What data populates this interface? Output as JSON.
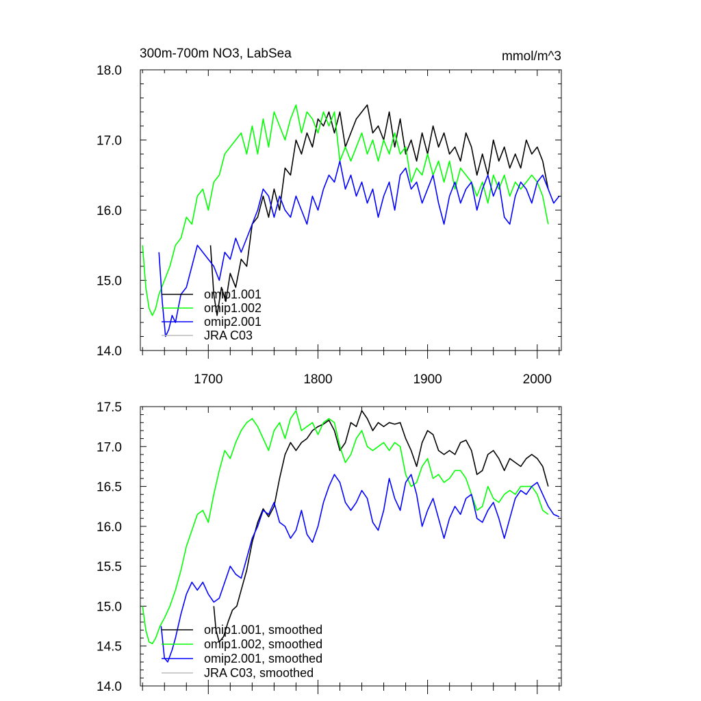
{
  "chart_data": [
    {
      "type": "line",
      "title": "300m-700m NO3, LabSea",
      "units": "mmol/m^3",
      "xlim": [
        1638,
        2022
      ],
      "ylim": [
        14.0,
        18.0
      ],
      "x_ticks": [
        1700,
        1800,
        1900,
        2000
      ],
      "x_tick_labels": [
        "1700",
        "1800",
        "1900",
        "2000"
      ],
      "y_ticks": [
        14.0,
        15.0,
        16.0,
        17.0,
        18.0
      ],
      "y_tick_labels": [
        "14.0",
        "15.0",
        "16.0",
        "17.0",
        "18.0"
      ],
      "legend_position": "bottom-left",
      "grid": false,
      "series": [
        {
          "name": "omip1.001",
          "color": "#000000",
          "x": [
            1702,
            1705,
            1708,
            1712,
            1716,
            1720,
            1725,
            1730,
            1735,
            1740,
            1745,
            1750,
            1755,
            1760,
            1765,
            1770,
            1775,
            1780,
            1785,
            1790,
            1795,
            1800,
            1805,
            1810,
            1815,
            1820,
            1825,
            1830,
            1835,
            1840,
            1845,
            1850,
            1855,
            1860,
            1865,
            1870,
            1875,
            1880,
            1885,
            1890,
            1895,
            1900,
            1905,
            1910,
            1915,
            1920,
            1925,
            1930,
            1935,
            1940,
            1945,
            1950,
            1955,
            1960,
            1965,
            1970,
            1975,
            1980,
            1985,
            1990,
            1995,
            2000,
            2005,
            2010
          ],
          "y": [
            15.5,
            14.8,
            14.5,
            14.9,
            14.7,
            15.1,
            14.9,
            15.3,
            15.2,
            15.8,
            15.9,
            16.2,
            15.9,
            16.3,
            16.0,
            16.6,
            16.5,
            17.0,
            16.8,
            17.1,
            16.9,
            17.3,
            17.2,
            17.4,
            17.1,
            17.4,
            16.9,
            17.1,
            17.3,
            17.4,
            17.5,
            17.1,
            17.2,
            17.0,
            17.4,
            16.9,
            17.3,
            16.8,
            17.0,
            16.7,
            17.1,
            16.8,
            17.2,
            16.9,
            17.1,
            16.8,
            16.9,
            16.7,
            17.1,
            16.9,
            16.5,
            16.8,
            16.5,
            17.0,
            16.7,
            16.9,
            16.6,
            16.8,
            16.6,
            17.0,
            16.8,
            16.9,
            16.7,
            16.3
          ]
        },
        {
          "name": "omip1.002",
          "color": "#00ff00",
          "x": [
            1640,
            1643,
            1646,
            1649,
            1652,
            1655,
            1660,
            1665,
            1670,
            1675,
            1680,
            1685,
            1690,
            1695,
            1700,
            1705,
            1710,
            1715,
            1720,
            1725,
            1730,
            1735,
            1740,
            1745,
            1750,
            1755,
            1760,
            1765,
            1770,
            1775,
            1780,
            1785,
            1790,
            1795,
            1800,
            1805,
            1810,
            1815,
            1820,
            1825,
            1830,
            1835,
            1840,
            1845,
            1850,
            1855,
            1860,
            1865,
            1870,
            1875,
            1880,
            1885,
            1890,
            1895,
            1900,
            1905,
            1910,
            1915,
            1920,
            1925,
            1930,
            1935,
            1940,
            1945,
            1950,
            1955,
            1960,
            1965,
            1970,
            1975,
            1980,
            1985,
            1990,
            1995,
            2000,
            2005,
            2010
          ],
          "y": [
            15.5,
            14.9,
            14.6,
            14.5,
            14.6,
            14.8,
            15.0,
            15.2,
            15.5,
            15.6,
            15.9,
            15.8,
            16.2,
            16.3,
            16.0,
            16.4,
            16.5,
            16.8,
            16.9,
            17.0,
            17.1,
            16.8,
            17.2,
            16.8,
            17.3,
            16.9,
            17.4,
            17.2,
            17.0,
            17.3,
            17.5,
            17.1,
            17.4,
            17.3,
            17.1,
            17.4,
            17.2,
            17.4,
            16.7,
            16.9,
            16.7,
            16.9,
            17.1,
            16.8,
            17.0,
            16.7,
            17.0,
            16.8,
            17.1,
            16.8,
            16.9,
            16.4,
            16.6,
            16.5,
            16.8,
            16.5,
            16.7,
            16.4,
            16.7,
            16.3,
            16.6,
            16.5,
            16.4,
            16.2,
            16.4,
            16.1,
            16.5,
            16.3,
            16.5,
            16.2,
            16.4,
            16.3,
            16.4,
            16.5,
            16.4,
            16.2,
            15.8
          ]
        },
        {
          "name": "omip2.001",
          "color": "#0000ff",
          "x": [
            1655,
            1658,
            1661,
            1664,
            1667,
            1670,
            1675,
            1680,
            1685,
            1690,
            1695,
            1700,
            1705,
            1710,
            1715,
            1720,
            1725,
            1730,
            1735,
            1740,
            1745,
            1750,
            1755,
            1760,
            1765,
            1770,
            1775,
            1780,
            1785,
            1790,
            1795,
            1800,
            1805,
            1810,
            1815,
            1820,
            1825,
            1830,
            1835,
            1840,
            1845,
            1850,
            1855,
            1860,
            1865,
            1870,
            1875,
            1880,
            1885,
            1890,
            1895,
            1900,
            1905,
            1910,
            1915,
            1920,
            1925,
            1930,
            1935,
            1940,
            1945,
            1950,
            1955,
            1960,
            1965,
            1970,
            1975,
            1980,
            1985,
            1990,
            1995,
            2000,
            2005,
            2010,
            2015,
            2020
          ],
          "y": [
            15.4,
            14.7,
            14.2,
            14.3,
            14.5,
            14.4,
            14.8,
            14.9,
            15.2,
            15.5,
            15.4,
            15.3,
            15.2,
            15.0,
            15.4,
            15.3,
            15.6,
            15.4,
            15.6,
            15.8,
            16.0,
            16.3,
            16.2,
            15.9,
            16.2,
            16.0,
            15.9,
            16.2,
            16.0,
            15.8,
            16.2,
            16.0,
            16.3,
            16.5,
            16.4,
            16.7,
            16.3,
            16.5,
            16.2,
            16.4,
            16.1,
            16.3,
            15.9,
            16.2,
            16.4,
            16.0,
            16.5,
            16.6,
            16.3,
            16.4,
            16.1,
            16.3,
            16.5,
            16.1,
            15.8,
            16.2,
            16.4,
            16.1,
            16.3,
            16.4,
            16.0,
            16.3,
            16.5,
            16.2,
            16.4,
            15.9,
            15.8,
            16.2,
            16.4,
            16.3,
            16.1,
            16.4,
            16.5,
            16.3,
            16.1,
            16.2
          ]
        },
        {
          "name": "JRA C03",
          "color": "#bbbbbb",
          "x": [],
          "y": []
        }
      ]
    },
    {
      "type": "line",
      "title": "",
      "units": "",
      "xlim": [
        1638,
        2022
      ],
      "ylim": [
        14.0,
        17.5
      ],
      "x_ticks": [
        1700,
        1800,
        1900,
        2000
      ],
      "x_tick_labels": [],
      "y_ticks": [
        14.0,
        14.5,
        15.0,
        15.5,
        16.0,
        16.5,
        17.0,
        17.5
      ],
      "y_tick_labels": [
        "14.0",
        "14.5",
        "15.0",
        "15.5",
        "16.0",
        "16.5",
        "17.0",
        "17.5"
      ],
      "legend_position": "bottom-left",
      "grid": false,
      "series": [
        {
          "name": "omip1.001, smoothed",
          "color": "#000000",
          "x": [
            1705,
            1707,
            1710,
            1714,
            1718,
            1722,
            1726,
            1730,
            1735,
            1740,
            1745,
            1750,
            1755,
            1760,
            1765,
            1770,
            1775,
            1780,
            1785,
            1790,
            1795,
            1800,
            1805,
            1810,
            1815,
            1820,
            1825,
            1830,
            1835,
            1840,
            1845,
            1850,
            1855,
            1860,
            1865,
            1870,
            1875,
            1880,
            1885,
            1890,
            1895,
            1900,
            1905,
            1910,
            1915,
            1920,
            1925,
            1930,
            1935,
            1940,
            1945,
            1950,
            1955,
            1960,
            1965,
            1970,
            1975,
            1980,
            1985,
            1990,
            1995,
            2000,
            2005,
            2010
          ],
          "y": [
            15.0,
            14.7,
            14.55,
            14.62,
            14.8,
            14.95,
            15.0,
            15.2,
            15.45,
            15.8,
            16.05,
            16.22,
            16.12,
            16.25,
            16.6,
            16.9,
            17.05,
            16.95,
            17.05,
            17.1,
            17.2,
            17.25,
            17.28,
            17.33,
            17.2,
            16.95,
            17.05,
            17.3,
            17.25,
            17.45,
            17.35,
            17.2,
            17.3,
            17.25,
            17.3,
            17.28,
            17.3,
            17.1,
            16.95,
            16.75,
            17.05,
            17.2,
            17.15,
            16.95,
            16.9,
            16.95,
            16.9,
            17.05,
            17.08,
            16.95,
            16.65,
            16.7,
            16.9,
            16.95,
            16.85,
            16.7,
            16.85,
            16.8,
            16.75,
            16.85,
            16.9,
            16.85,
            16.75,
            16.5
          ]
        },
        {
          "name": "omip1.002, smoothed",
          "color": "#00ff00",
          "x": [
            1640,
            1643,
            1646,
            1649,
            1652,
            1656,
            1660,
            1665,
            1670,
            1675,
            1680,
            1685,
            1690,
            1695,
            1700,
            1705,
            1710,
            1715,
            1720,
            1725,
            1730,
            1735,
            1740,
            1745,
            1750,
            1755,
            1760,
            1765,
            1770,
            1775,
            1780,
            1785,
            1790,
            1795,
            1800,
            1805,
            1810,
            1815,
            1820,
            1825,
            1830,
            1835,
            1840,
            1845,
            1850,
            1855,
            1860,
            1865,
            1870,
            1875,
            1880,
            1885,
            1890,
            1895,
            1900,
            1905,
            1910,
            1915,
            1920,
            1925,
            1930,
            1935,
            1940,
            1945,
            1950,
            1955,
            1960,
            1965,
            1970,
            1975,
            1980,
            1985,
            1990,
            1995,
            2000,
            2005,
            2010
          ],
          "y": [
            15.0,
            14.7,
            14.55,
            14.53,
            14.6,
            14.75,
            14.85,
            15.0,
            15.2,
            15.45,
            15.75,
            15.95,
            16.15,
            16.2,
            16.05,
            16.4,
            16.7,
            16.95,
            16.85,
            17.05,
            17.2,
            17.3,
            17.35,
            17.25,
            17.1,
            16.95,
            17.2,
            17.3,
            17.1,
            17.35,
            17.45,
            17.2,
            17.25,
            17.3,
            17.15,
            17.3,
            17.35,
            17.3,
            17.0,
            16.8,
            16.9,
            17.1,
            17.2,
            17.0,
            16.95,
            17.0,
            17.05,
            16.95,
            17.05,
            17.0,
            16.65,
            16.5,
            16.55,
            16.75,
            16.85,
            16.6,
            16.65,
            16.55,
            16.6,
            16.7,
            16.7,
            16.6,
            16.4,
            16.2,
            16.25,
            16.5,
            16.35,
            16.3,
            16.4,
            16.45,
            16.4,
            16.5,
            16.5,
            16.5,
            16.4,
            16.2,
            16.15
          ]
        },
        {
          "name": "omip2.001, smoothed",
          "color": "#0000ff",
          "x": [
            1657,
            1660,
            1663,
            1667,
            1670,
            1675,
            1680,
            1685,
            1690,
            1695,
            1700,
            1705,
            1710,
            1715,
            1720,
            1725,
            1730,
            1735,
            1740,
            1745,
            1750,
            1755,
            1760,
            1765,
            1770,
            1775,
            1780,
            1785,
            1790,
            1795,
            1800,
            1805,
            1810,
            1815,
            1820,
            1825,
            1830,
            1835,
            1840,
            1845,
            1850,
            1855,
            1860,
            1865,
            1870,
            1875,
            1880,
            1885,
            1890,
            1895,
            1900,
            1905,
            1910,
            1915,
            1920,
            1925,
            1930,
            1935,
            1940,
            1945,
            1950,
            1955,
            1960,
            1965,
            1970,
            1975,
            1980,
            1985,
            1990,
            1995,
            2000,
            2005,
            2010,
            2015,
            2020
          ],
          "y": [
            14.75,
            14.35,
            14.3,
            14.45,
            14.6,
            14.9,
            15.15,
            15.3,
            15.2,
            15.3,
            15.15,
            15.05,
            15.1,
            15.3,
            15.5,
            15.4,
            15.35,
            15.6,
            15.85,
            16.0,
            16.2,
            16.15,
            16.3,
            16.05,
            16.0,
            15.85,
            15.95,
            16.2,
            15.9,
            15.8,
            16.0,
            16.3,
            16.5,
            16.65,
            16.55,
            16.3,
            16.2,
            16.3,
            16.45,
            16.35,
            16.05,
            15.95,
            16.2,
            16.6,
            16.35,
            16.2,
            16.55,
            16.65,
            16.4,
            16.0,
            16.2,
            16.35,
            16.1,
            15.85,
            16.1,
            16.25,
            16.15,
            16.35,
            16.4,
            16.1,
            16.05,
            16.2,
            16.3,
            16.1,
            15.85,
            16.1,
            16.35,
            16.45,
            16.4,
            16.5,
            16.55,
            16.4,
            16.25,
            16.15,
            16.12
          ]
        },
        {
          "name": "JRA C03, smoothed",
          "color": "#bbbbbb",
          "x": [],
          "y": []
        }
      ]
    }
  ]
}
